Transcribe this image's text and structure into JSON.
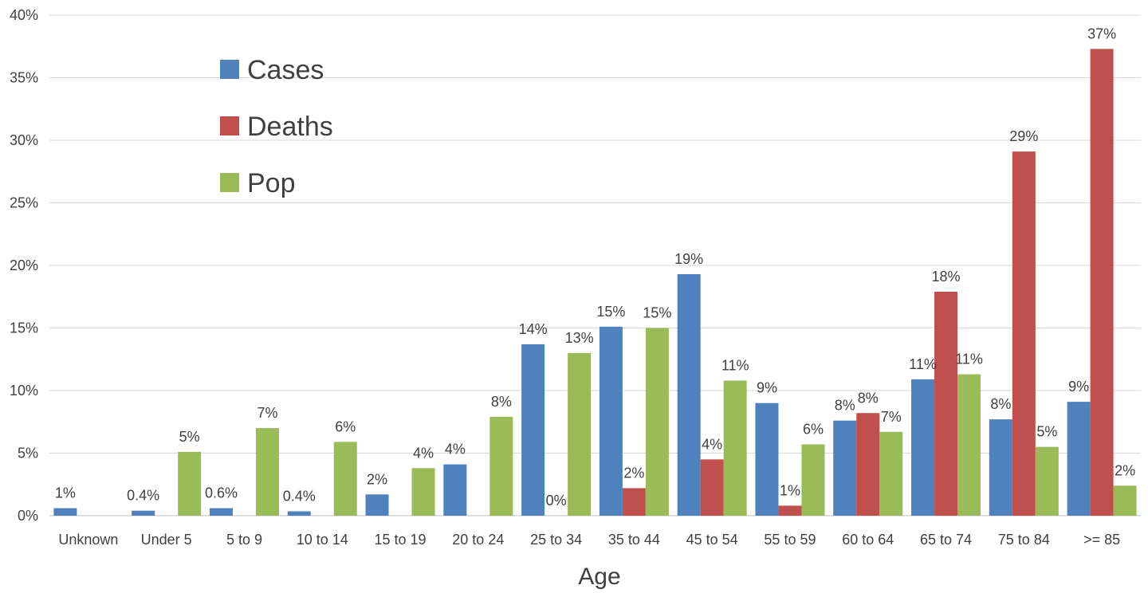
{
  "chart_data": {
    "type": "bar",
    "title": "",
    "xlabel": "Age",
    "ylabel": "",
    "ylim": [
      0,
      40
    ],
    "y_ticks": [
      "0%",
      "5%",
      "10%",
      "15%",
      "20%",
      "25%",
      "30%",
      "35%",
      "40%"
    ],
    "y_tick_values": [
      0,
      5,
      10,
      15,
      20,
      25,
      30,
      35,
      40
    ],
    "grid": true,
    "legend_position": "top-left",
    "categories": [
      "Unknown",
      "Under 5",
      "5 to 9",
      "10 to 14",
      "15 to 19",
      "20 to 24",
      "25 to 34",
      "35 to 44",
      "45 to 54",
      "55 to 59",
      "60 to 64",
      "65 to 74",
      "75 to 84",
      ">= 85"
    ],
    "series": [
      {
        "name": "Cases",
        "color": "#4f81bd",
        "values": [
          0.6,
          0.4,
          0.6,
          0.35,
          1.7,
          4.1,
          13.7,
          15.1,
          19.3,
          9.0,
          7.6,
          10.9,
          7.7,
          9.1
        ],
        "labels": [
          "1%",
          "0.4%",
          "0.6%",
          "0.4%",
          "2%",
          "4%",
          "14%",
          "15%",
          "19%",
          "9%",
          "8%",
          "11%",
          "8%",
          "9%"
        ]
      },
      {
        "name": "Deaths",
        "color": "#c0504d",
        "values": [
          0,
          0,
          0,
          0,
          0,
          0,
          0,
          2.2,
          4.5,
          0.8,
          8.2,
          17.9,
          29.1,
          37.3
        ],
        "labels": [
          "",
          "",
          "",
          "",
          "",
          "",
          "0%",
          "2%",
          "4%",
          "1%",
          "8%",
          "18%",
          "29%",
          "37%"
        ]
      },
      {
        "name": "Pop",
        "color": "#9bbb59",
        "values": [
          0,
          5.1,
          7.0,
          5.9,
          3.8,
          7.9,
          13.0,
          15.0,
          10.8,
          5.7,
          6.7,
          11.3,
          5.5,
          2.4
        ],
        "labels": [
          "",
          "5%",
          "7%",
          "6%",
          "4%",
          "8%",
          "13%",
          "15%",
          "11%",
          "6%",
          "7%",
          "11%",
          "5%",
          "2%"
        ]
      }
    ]
  }
}
